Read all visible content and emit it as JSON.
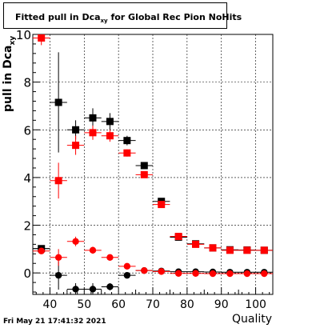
{
  "title": "Fitted pull in Dca",
  "title_subscript": "xy",
  "title_suffix": " for Global Rec Pion NoHits",
  "footer": "Fri May 21 17:41:32 2021",
  "chart_data": {
    "type": "scatter",
    "title": "Fitted pull in Dcaxy for Global Rec Pion NoHits",
    "xlabel": "Quality",
    "ylabel": "pull in Dca",
    "ylabel_subscript": "xy",
    "xlim": [
      35,
      105
    ],
    "ylim": [
      -0.9,
      10
    ],
    "grid": true,
    "x_ticks": [
      40,
      50,
      60,
      70,
      80,
      90,
      100
    ],
    "y_ticks": [
      0,
      2,
      4,
      6,
      8,
      10
    ],
    "series": [
      {
        "color": "#000000",
        "marker": "square",
        "points": [
          {
            "x": 37.5,
            "y": 1.02,
            "err": 0.1
          },
          {
            "x": 42.5,
            "y": 7.15,
            "err": 2.1
          },
          {
            "x": 47.5,
            "y": 6.0,
            "err": 0.4
          },
          {
            "x": 52.5,
            "y": 6.5,
            "err": 0.4
          },
          {
            "x": 57.5,
            "y": 6.35,
            "err": 0.35
          },
          {
            "x": 62.5,
            "y": 5.55,
            "err": 0.2
          },
          {
            "x": 67.5,
            "y": 4.5,
            "err": 0.15
          },
          {
            "x": 72.5,
            "y": 3.0,
            "err": 0.1
          },
          {
            "x": 77.5,
            "y": 1.5,
            "err": 0.07
          },
          {
            "x": 82.5,
            "y": 1.22,
            "err": 0.05
          },
          {
            "x": 87.5,
            "y": 1.05,
            "err": 0.04
          },
          {
            "x": 92.5,
            "y": 0.97,
            "err": 0.03
          },
          {
            "x": 97.5,
            "y": 0.96,
            "err": 0.03
          },
          {
            "x": 102.5,
            "y": 0.95,
            "err": 0.03
          }
        ]
      },
      {
        "color": "#ff0000",
        "marker": "square",
        "points": [
          {
            "x": 37.5,
            "y": 9.85,
            "err": 0.3
          },
          {
            "x": 42.5,
            "y": 3.87,
            "err": 0.75
          },
          {
            "x": 47.5,
            "y": 5.35,
            "err": 0.4
          },
          {
            "x": 52.5,
            "y": 5.88,
            "err": 0.3
          },
          {
            "x": 57.5,
            "y": 5.75,
            "err": 0.25
          },
          {
            "x": 62.5,
            "y": 5.03,
            "err": 0.15
          },
          {
            "x": 67.5,
            "y": 4.12,
            "err": 0.12
          },
          {
            "x": 72.5,
            "y": 2.87,
            "err": 0.08
          },
          {
            "x": 77.5,
            "y": 1.53,
            "err": 0.06
          },
          {
            "x": 82.5,
            "y": 1.2,
            "err": 0.05
          },
          {
            "x": 87.5,
            "y": 1.05,
            "err": 0.04
          },
          {
            "x": 92.5,
            "y": 0.95,
            "err": 0.03
          },
          {
            "x": 97.5,
            "y": 0.95,
            "err": 0.03
          },
          {
            "x": 102.5,
            "y": 0.95,
            "err": 0.03
          }
        ]
      },
      {
        "color": "#000000",
        "marker": "circle",
        "points": [
          {
            "x": 37.5,
            "y": 1.02,
            "err": 0.1
          },
          {
            "x": 42.5,
            "y": -0.1,
            "err": 0.6
          },
          {
            "x": 47.5,
            "y": -0.68,
            "err": 0.25
          },
          {
            "x": 52.5,
            "y": -0.68,
            "err": 0.25
          },
          {
            "x": 57.5,
            "y": -0.58,
            "err": 0.15
          },
          {
            "x": 62.5,
            "y": -0.1,
            "err": 0.1
          },
          {
            "x": 67.5,
            "y": 0.1,
            "err": 0.07
          },
          {
            "x": 72.5,
            "y": 0.08,
            "err": 0.05
          },
          {
            "x": 77.5,
            "y": 0.05,
            "err": 0.04
          },
          {
            "x": 82.5,
            "y": 0.05,
            "err": 0.03
          },
          {
            "x": 87.5,
            "y": 0.04,
            "err": 0.03
          },
          {
            "x": 92.5,
            "y": 0.03,
            "err": 0.02
          },
          {
            "x": 97.5,
            "y": 0.03,
            "err": 0.02
          },
          {
            "x": 102.5,
            "y": 0.03,
            "err": 0.02
          }
        ]
      },
      {
        "color": "#ff0000",
        "marker": "circle",
        "points": [
          {
            "x": 37.5,
            "y": 0.92,
            "err": 0.1
          },
          {
            "x": 42.5,
            "y": 0.65,
            "err": 0.35
          },
          {
            "x": 47.5,
            "y": 1.32,
            "err": 0.2
          },
          {
            "x": 52.5,
            "y": 0.95,
            "err": 0.15
          },
          {
            "x": 57.5,
            "y": 0.65,
            "err": 0.12
          },
          {
            "x": 62.5,
            "y": 0.28,
            "err": 0.08
          },
          {
            "x": 67.5,
            "y": 0.1,
            "err": 0.06
          },
          {
            "x": 72.5,
            "y": 0.06,
            "err": 0.04
          },
          {
            "x": 77.5,
            "y": -0.02,
            "err": 0.03
          },
          {
            "x": 82.5,
            "y": -0.02,
            "err": 0.03
          },
          {
            "x": 87.5,
            "y": -0.03,
            "err": 0.02
          },
          {
            "x": 92.5,
            "y": -0.03,
            "err": 0.02
          },
          {
            "x": 97.5,
            "y": -0.03,
            "err": 0.02
          },
          {
            "x": 102.5,
            "y": -0.03,
            "err": 0.02
          }
        ]
      }
    ]
  }
}
